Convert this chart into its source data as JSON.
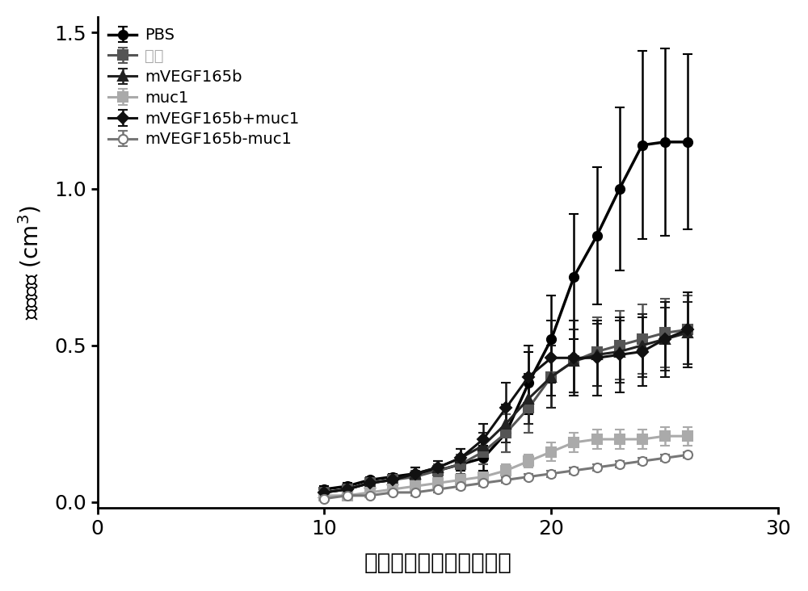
{
  "title": "",
  "xlabel": "肿瘤细胞接种天数（天）",
  "ylabel": "肿瘤体积 (cm³)",
  "xlim": [
    0,
    30
  ],
  "ylim": [
    -0.02,
    1.55
  ],
  "xticks": [
    0,
    10,
    20,
    30
  ],
  "yticks": [
    0.0,
    0.5,
    1.0,
    1.5
  ],
  "series": [
    {
      "label": "PBS",
      "color": "#000000",
      "marker": "o",
      "markersize": 8,
      "linewidth": 2.5,
      "linestyle": "-",
      "open_marker": false,
      "x": [
        10,
        11,
        12,
        13,
        14,
        15,
        16,
        17,
        18,
        19,
        20,
        21,
        22,
        23,
        24,
        25,
        26
      ],
      "y": [
        0.04,
        0.05,
        0.07,
        0.08,
        0.09,
        0.1,
        0.12,
        0.14,
        0.22,
        0.38,
        0.52,
        0.72,
        0.85,
        1.0,
        1.14,
        1.15,
        1.15
      ],
      "yerr": [
        0.01,
        0.01,
        0.01,
        0.01,
        0.02,
        0.02,
        0.02,
        0.04,
        0.06,
        0.1,
        0.14,
        0.2,
        0.22,
        0.26,
        0.3,
        0.3,
        0.28
      ]
    },
    {
      "label": "佐剂",
      "color": "#555555",
      "marker": "s",
      "markersize": 8,
      "linewidth": 2.2,
      "linestyle": "-",
      "open_marker": false,
      "x": [
        10,
        11,
        12,
        13,
        14,
        15,
        16,
        17,
        18,
        19,
        20,
        21,
        22,
        23,
        24,
        25,
        26
      ],
      "y": [
        0.03,
        0.04,
        0.06,
        0.07,
        0.08,
        0.1,
        0.12,
        0.16,
        0.22,
        0.3,
        0.4,
        0.45,
        0.48,
        0.5,
        0.52,
        0.54,
        0.55
      ],
      "yerr": [
        0.01,
        0.01,
        0.01,
        0.01,
        0.02,
        0.02,
        0.03,
        0.04,
        0.06,
        0.08,
        0.1,
        0.1,
        0.11,
        0.11,
        0.11,
        0.11,
        0.11
      ]
    },
    {
      "label": "mVEGF165b",
      "color": "#222222",
      "marker": "^",
      "markersize": 8,
      "linewidth": 2.2,
      "linestyle": "-",
      "open_marker": false,
      "x": [
        10,
        11,
        12,
        13,
        14,
        15,
        16,
        17,
        18,
        19,
        20,
        21,
        22,
        23,
        24,
        25,
        26
      ],
      "y": [
        0.03,
        0.04,
        0.06,
        0.07,
        0.09,
        0.11,
        0.14,
        0.18,
        0.25,
        0.33,
        0.4,
        0.45,
        0.47,
        0.48,
        0.5,
        0.52,
        0.54
      ],
      "yerr": [
        0.01,
        0.01,
        0.01,
        0.01,
        0.02,
        0.02,
        0.03,
        0.04,
        0.06,
        0.08,
        0.1,
        0.1,
        0.1,
        0.1,
        0.1,
        0.1,
        0.1
      ]
    },
    {
      "label": "muc1",
      "color": "#aaaaaa",
      "marker": "s",
      "markersize": 8,
      "linewidth": 2.2,
      "linestyle": "-",
      "open_marker": false,
      "x": [
        10,
        11,
        12,
        13,
        14,
        15,
        16,
        17,
        18,
        19,
        20,
        21,
        22,
        23,
        24,
        25,
        26
      ],
      "y": [
        0.02,
        0.02,
        0.03,
        0.04,
        0.05,
        0.06,
        0.07,
        0.08,
        0.1,
        0.13,
        0.16,
        0.19,
        0.2,
        0.2,
        0.2,
        0.21,
        0.21
      ],
      "yerr": [
        0.005,
        0.005,
        0.01,
        0.01,
        0.01,
        0.01,
        0.01,
        0.01,
        0.02,
        0.02,
        0.03,
        0.03,
        0.03,
        0.03,
        0.03,
        0.03,
        0.03
      ]
    },
    {
      "label": "mVEGF165b+muc1",
      "color": "#111111",
      "marker": "D",
      "markersize": 7,
      "linewidth": 2.2,
      "linestyle": "-",
      "open_marker": false,
      "x": [
        10,
        11,
        12,
        13,
        14,
        15,
        16,
        17,
        18,
        19,
        20,
        21,
        22,
        23,
        24,
        25,
        26
      ],
      "y": [
        0.03,
        0.04,
        0.06,
        0.07,
        0.09,
        0.11,
        0.14,
        0.2,
        0.3,
        0.4,
        0.46,
        0.46,
        0.46,
        0.47,
        0.48,
        0.52,
        0.55
      ],
      "yerr": [
        0.01,
        0.01,
        0.01,
        0.01,
        0.02,
        0.02,
        0.03,
        0.05,
        0.08,
        0.1,
        0.12,
        0.12,
        0.12,
        0.12,
        0.11,
        0.12,
        0.12
      ]
    },
    {
      "label": "mVEGF165b-muc1",
      "color": "#777777",
      "marker": "o",
      "markersize": 8,
      "linewidth": 2.2,
      "linestyle": "-",
      "open_marker": true,
      "x": [
        10,
        11,
        12,
        13,
        14,
        15,
        16,
        17,
        18,
        19,
        20,
        21,
        22,
        23,
        24,
        25,
        26
      ],
      "y": [
        0.01,
        0.02,
        0.02,
        0.03,
        0.03,
        0.04,
        0.05,
        0.06,
        0.07,
        0.08,
        0.09,
        0.1,
        0.11,
        0.12,
        0.13,
        0.14,
        0.15
      ],
      "yerr": [
        0.005,
        0.005,
        0.005,
        0.005,
        0.01,
        0.01,
        0.01,
        0.01,
        0.01,
        0.01,
        0.01,
        0.01,
        0.01,
        0.01,
        0.01,
        0.01,
        0.01
      ]
    }
  ],
  "legend_佐剂_color": "#aaaaaa",
  "background_color": "#ffffff",
  "spine_color": "#000000",
  "figsize": [
    10.0,
    7.32
  ],
  "dpi": 100
}
